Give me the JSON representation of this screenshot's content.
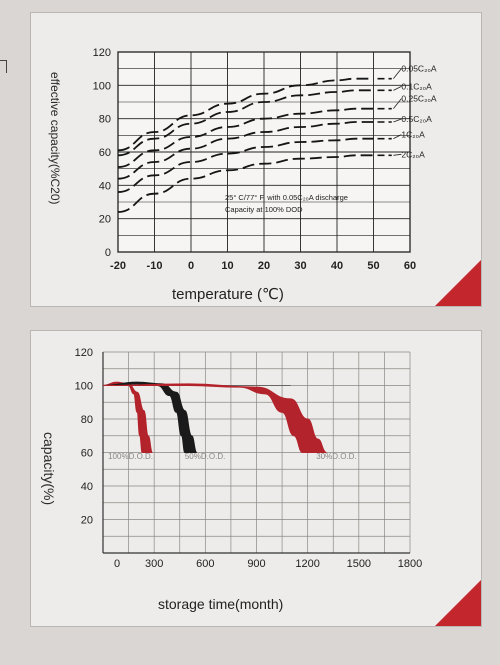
{
  "chart_data": [
    {
      "type": "line",
      "title": "",
      "xlabel": "temperature (℃)",
      "ylabel": "effective capacity(%C20)",
      "xlim": [
        -20,
        60
      ],
      "ylim": [
        0,
        120
      ],
      "x_ticks": [
        "-20",
        "-10",
        "0",
        "10",
        "20",
        "30",
        "40",
        "50",
        "60"
      ],
      "y_ticks": [
        "0",
        "20",
        "40",
        "60",
        "80",
        "100",
        "120"
      ],
      "grid": true,
      "annotation": [
        "25° C/77° F. with 0.05C₂₀A discharge",
        "Capacity at 100% DOD"
      ],
      "series": [
        {
          "name": "0.05C₂₀A",
          "x": [
            -20,
            -10,
            0,
            10,
            20,
            30,
            40,
            45,
            50
          ],
          "y": [
            61,
            72,
            82,
            89,
            95,
            100,
            103,
            104,
            104
          ]
        },
        {
          "name": "0.1C₂₀A",
          "x": [
            -20,
            -10,
            0,
            10,
            20,
            30,
            40,
            45,
            50
          ],
          "y": [
            58,
            68,
            77,
            84,
            90,
            94,
            96,
            97,
            97
          ]
        },
        {
          "name": "0.25C₂₀A",
          "x": [
            -20,
            -10,
            0,
            10,
            20,
            30,
            40,
            45,
            50
          ],
          "y": [
            51,
            61,
            69,
            75,
            80,
            83,
            85,
            86,
            86
          ]
        },
        {
          "name": "0.5C₂₀A",
          "x": [
            -20,
            -10,
            0,
            10,
            20,
            30,
            40,
            45,
            50
          ],
          "y": [
            44,
            54,
            62,
            68,
            72,
            75,
            77,
            78,
            78
          ]
        },
        {
          "name": "1C₂₀A",
          "x": [
            -20,
            -10,
            0,
            10,
            20,
            30,
            40,
            45,
            50
          ],
          "y": [
            36,
            46,
            54,
            59,
            63,
            66,
            67,
            68,
            68
          ]
        },
        {
          "name": "2C₂₀A",
          "x": [
            -20,
            -10,
            0,
            10,
            20,
            30,
            40,
            45,
            50
          ],
          "y": [
            24,
            35,
            44,
            49,
            53,
            56,
            57,
            58,
            58
          ]
        }
      ]
    },
    {
      "type": "area",
      "title": "",
      "xlabel": "storage time(month)",
      "ylabel": "capacity(%)",
      "xlim": [
        0,
        1800
      ],
      "ylim": [
        0,
        120
      ],
      "x_ticks": [
        "0",
        "300",
        "600",
        "900",
        "1200",
        "1500",
        "1800"
      ],
      "y_ticks": [
        "20",
        "40",
        "60",
        "80",
        "100",
        "120"
      ],
      "grid": true,
      "series": [
        {
          "name": "100%D.O.D.",
          "color": "#b3232b",
          "upper": {
            "x": [
              0,
              80,
              150,
              200,
              240,
              265,
              290
            ],
            "y": [
              100,
              102,
              101,
              96,
              85,
              70,
              60
            ]
          },
          "lower": {
            "x": [
              0,
              80,
              150,
              180,
              200,
              215,
              230
            ],
            "y": [
              100,
              101,
              100,
              95,
              84,
              70,
              60
            ]
          }
        },
        {
          "name": "50%D.O.D.",
          "color": "#1a1a1a",
          "upper": {
            "x": [
              0,
              200,
              350,
              430,
              480,
              520,
              550
            ],
            "y": [
              100,
              102,
              101,
              96,
              85,
              70,
              60
            ]
          },
          "lower": {
            "x": [
              0,
              200,
              320,
              390,
              430,
              460,
              480
            ],
            "y": [
              100,
              101,
              100,
              94,
              84,
              70,
              60
            ]
          }
        },
        {
          "name": "30%D.O.D.",
          "color": "#b3232b",
          "upper": {
            "x": [
              0,
              500,
              900,
              1100,
              1200,
              1260,
              1310
            ],
            "y": [
              100,
              101,
              99,
              92,
              80,
              68,
              60
            ]
          },
          "lower": {
            "x": [
              0,
              500,
              800,
              950,
              1050,
              1120,
              1170
            ],
            "y": [
              100,
              100,
              99,
              95,
              84,
              70,
              60
            ]
          }
        }
      ]
    }
  ],
  "colors": {
    "accent": "#c4262e",
    "panel": "#eeecea",
    "background": "#d9d6d3"
  }
}
